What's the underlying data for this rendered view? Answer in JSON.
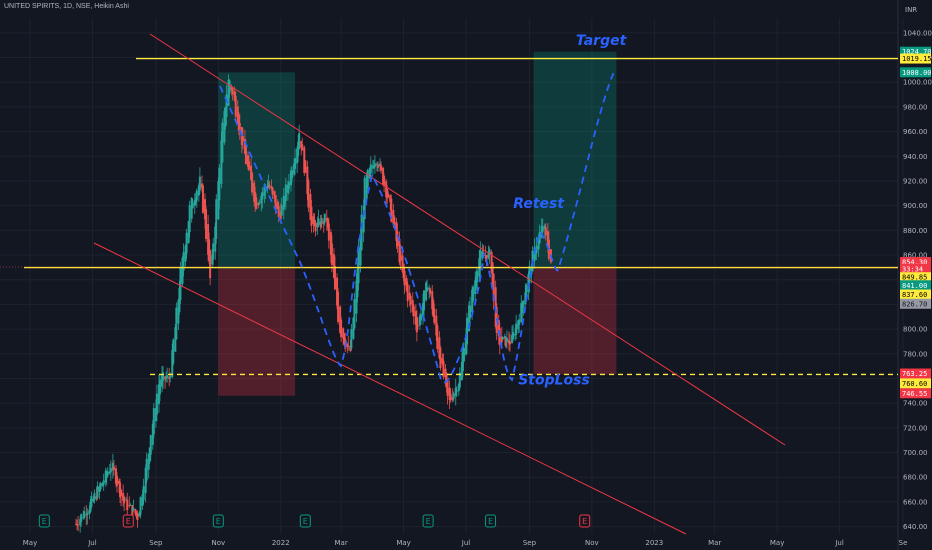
{
  "header": {
    "symbol": "UNITED SPIRITS",
    "interval": "1D",
    "exchange": "NSE",
    "chart_style": "Heikin Ashi",
    "currency": "INR"
  },
  "chart_data": {
    "type": "candlestick",
    "title": "UNITED SPIRITS, 1D, NSE, Heikin Ashi",
    "y_unit": "INR",
    "ylim": [
      634,
      1052
    ],
    "y_ticks": [
      640,
      660,
      680,
      700,
      720,
      740,
      760,
      780,
      800,
      820,
      840,
      860,
      880,
      900,
      920,
      940,
      960,
      980,
      1000,
      1020,
      1040
    ],
    "x_ticks": [
      "May",
      "Jul",
      "Sep",
      "Nov",
      "2022",
      "Mar",
      "May",
      "Jul",
      "Sep",
      "Nov",
      "2023",
      "Mar",
      "May",
      "Jul",
      "Se"
    ],
    "price_path": [
      {
        "date": "2021-06-15",
        "close": 642
      },
      {
        "date": "2021-07-01",
        "close": 660
      },
      {
        "date": "2021-07-20",
        "close": 690
      },
      {
        "date": "2021-08-01",
        "close": 660
      },
      {
        "date": "2021-08-15",
        "close": 648
      },
      {
        "date": "2021-08-25",
        "close": 700
      },
      {
        "date": "2021-09-05",
        "close": 760
      },
      {
        "date": "2021-09-15",
        "close": 760
      },
      {
        "date": "2021-09-25",
        "close": 840
      },
      {
        "date": "2021-10-05",
        "close": 900
      },
      {
        "date": "2021-10-15",
        "close": 920
      },
      {
        "date": "2021-10-25",
        "close": 840
      },
      {
        "date": "2021-11-05",
        "close": 960
      },
      {
        "date": "2021-11-12",
        "close": 1005
      },
      {
        "date": "2021-11-25",
        "close": 950
      },
      {
        "date": "2021-12-08",
        "close": 900
      },
      {
        "date": "2021-12-20",
        "close": 920
      },
      {
        "date": "2021-12-31",
        "close": 890
      },
      {
        "date": "2022-01-12",
        "close": 930
      },
      {
        "date": "2022-01-20",
        "close": 960
      },
      {
        "date": "2022-02-01",
        "close": 880
      },
      {
        "date": "2022-02-15",
        "close": 890
      },
      {
        "date": "2022-02-28",
        "close": 800
      },
      {
        "date": "2022-03-10",
        "close": 780
      },
      {
        "date": "2022-03-25",
        "close": 920
      },
      {
        "date": "2022-04-05",
        "close": 940
      },
      {
        "date": "2022-04-18",
        "close": 900
      },
      {
        "date": "2022-05-01",
        "close": 840
      },
      {
        "date": "2022-05-15",
        "close": 800
      },
      {
        "date": "2022-05-25",
        "close": 840
      },
      {
        "date": "2022-06-05",
        "close": 780
      },
      {
        "date": "2022-06-15",
        "close": 740
      },
      {
        "date": "2022-06-25",
        "close": 760
      },
      {
        "date": "2022-07-05",
        "close": 820
      },
      {
        "date": "2022-07-15",
        "close": 860
      },
      {
        "date": "2022-07-25",
        "close": 860
      },
      {
        "date": "2022-08-01",
        "close": 790
      },
      {
        "date": "2022-08-15",
        "close": 790
      },
      {
        "date": "2022-08-25",
        "close": 820
      },
      {
        "date": "2022-09-05",
        "close": 860
      },
      {
        "date": "2022-09-15",
        "close": 885
      },
      {
        "date": "2022-09-22",
        "close": 854.3
      }
    ],
    "lines": {
      "resistance_top": 1019.15,
      "support": 849.85,
      "stoploss_dashed": 763.25
    },
    "zones": {
      "past_target_zone": {
        "start": "2021-11-01",
        "end": "2022-01-15",
        "top": 1008,
        "bottom": 849
      },
      "past_stop_zone": {
        "start": "2021-11-01",
        "end": "2022-01-15",
        "top": 849,
        "bottom": 746
      },
      "trade_target_zone": {
        "start": "2022-09-05",
        "end": "2022-11-25",
        "top": 1024.7,
        "bottom": 849.85
      },
      "trade_stop_zone": {
        "start": "2022-09-05",
        "end": "2022-11-25",
        "top": 849.85,
        "bottom": 763.25
      }
    },
    "annotations": [
      {
        "text": "Target",
        "date": "2022-11-10",
        "price": 1030
      },
      {
        "text": "Retest",
        "date": "2022-09-10",
        "price": 898
      },
      {
        "text": "StopLoss",
        "date": "2022-09-25",
        "price": 755
      }
    ],
    "axis_badges": [
      {
        "text": "1024.70",
        "price": 1024.7,
        "color": "#089981",
        "fg": "#ffffff"
      },
      {
        "text": "1019.15",
        "price": 1019.15,
        "color": "#ffeb3b",
        "fg": "#000000"
      },
      {
        "text": "1008.00",
        "price": 1008.0,
        "color": "#089981",
        "fg": "#ffffff"
      },
      {
        "text": "854.30",
        "price": 854.3,
        "color": "#f23645",
        "fg": "#ffffff"
      },
      {
        "text": "33:34",
        "price": 848.7,
        "color": "#f23645",
        "fg": "#ffffff"
      },
      {
        "text": "849.85",
        "price": 842.0,
        "color": "#ffeb3b",
        "fg": "#000000"
      },
      {
        "text": "841.00",
        "price": 835.5,
        "color": "#089981",
        "fg": "#ffffff"
      },
      {
        "text": "837.60",
        "price": 828.0,
        "color": "#ffeb3b",
        "fg": "#000000"
      },
      {
        "text": "826.70",
        "price": 820.5,
        "color": "#9598a1",
        "fg": "#131722"
      },
      {
        "text": "763.25",
        "price": 764.0,
        "color": "#f23645",
        "fg": "#ffffff"
      },
      {
        "text": "760.60",
        "price": 756.0,
        "color": "#ffeb3b",
        "fg": "#000000"
      },
      {
        "text": "746.55",
        "price": 748.0,
        "color": "#f23645",
        "fg": "#ffffff"
      }
    ],
    "event_markers": [
      {
        "label": "E",
        "date": "2021-05-15",
        "color": "#089981"
      },
      {
        "label": "E",
        "date": "2021-08-05",
        "color": "#f23645"
      },
      {
        "label": "E",
        "date": "2021-11-01",
        "color": "#089981"
      },
      {
        "label": "E",
        "date": "2022-01-25",
        "color": "#089981"
      },
      {
        "label": "E",
        "date": "2022-05-25",
        "color": "#089981"
      },
      {
        "label": "E",
        "date": "2022-07-25",
        "color": "#089981"
      },
      {
        "label": "E",
        "date": "2022-10-25",
        "color": "#f23645"
      }
    ],
    "colors": {
      "up": "#26a69a",
      "down": "#ef5350",
      "background": "#131722",
      "horizontal_lines": "#ffeb3b",
      "trendlines": "#f23645",
      "projection": "#2962ff"
    },
    "grid": true
  }
}
